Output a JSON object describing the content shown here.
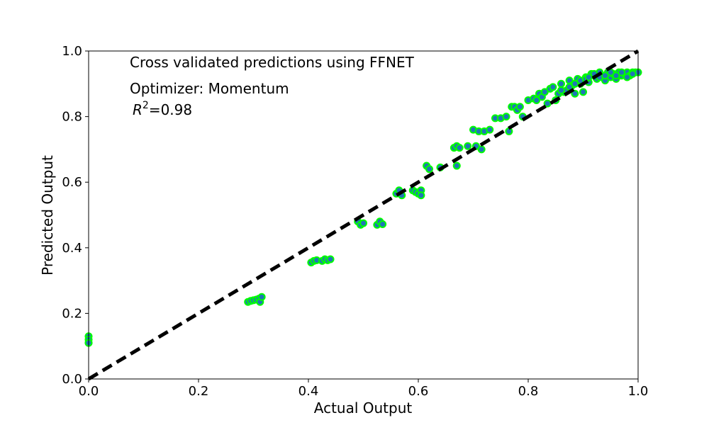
{
  "chart_data": {
    "type": "scatter",
    "title": "",
    "xlabel": "Actual Output",
    "ylabel": "Predicted Output",
    "xlim": [
      0.0,
      1.0
    ],
    "ylim": [
      0.0,
      1.0
    ],
    "x_ticks": [
      "0.0",
      "0.2",
      "0.4",
      "0.6",
      "0.8",
      "1.0"
    ],
    "y_ticks": [
      "0.0",
      "0.2",
      "0.4",
      "0.6",
      "0.8",
      "1.0"
    ],
    "grid": false,
    "annotations": {
      "line1": "Cross validated predictions using FFNET",
      "line2": "Optimizer: Momentum",
      "r2_symbol": "R",
      "r2_superscript": "2",
      "r2_value": "=0.98"
    },
    "reference_line": {
      "x": [
        0.0,
        1.0
      ],
      "y": [
        0.0,
        1.0
      ],
      "style": "dashed",
      "color": "#000000"
    },
    "marker": {
      "fill": "#1f77b4",
      "edge": "#00ff00"
    },
    "points": [
      [
        0.0,
        0.13
      ],
      [
        0.0,
        0.12
      ],
      [
        0.0,
        0.11
      ],
      [
        0.0,
        0.11
      ],
      [
        0.29,
        0.235
      ],
      [
        0.295,
        0.238
      ],
      [
        0.3,
        0.24
      ],
      [
        0.305,
        0.242
      ],
      [
        0.31,
        0.245
      ],
      [
        0.312,
        0.235
      ],
      [
        0.315,
        0.25
      ],
      [
        0.405,
        0.355
      ],
      [
        0.41,
        0.36
      ],
      [
        0.415,
        0.362
      ],
      [
        0.425,
        0.36
      ],
      [
        0.43,
        0.365
      ],
      [
        0.435,
        0.362
      ],
      [
        0.44,
        0.365
      ],
      [
        0.49,
        0.48
      ],
      [
        0.495,
        0.47
      ],
      [
        0.5,
        0.475
      ],
      [
        0.525,
        0.47
      ],
      [
        0.53,
        0.48
      ],
      [
        0.535,
        0.472
      ],
      [
        0.56,
        0.565
      ],
      [
        0.565,
        0.575
      ],
      [
        0.57,
        0.56
      ],
      [
        0.59,
        0.575
      ],
      [
        0.595,
        0.57
      ],
      [
        0.6,
        0.565
      ],
      [
        0.605,
        0.575
      ],
      [
        0.605,
        0.56
      ],
      [
        0.615,
        0.65
      ],
      [
        0.62,
        0.64
      ],
      [
        0.64,
        0.645
      ],
      [
        0.665,
        0.705
      ],
      [
        0.67,
        0.71
      ],
      [
        0.67,
        0.65
      ],
      [
        0.675,
        0.705
      ],
      [
        0.69,
        0.71
      ],
      [
        0.7,
        0.76
      ],
      [
        0.705,
        0.71
      ],
      [
        0.71,
        0.755
      ],
      [
        0.715,
        0.7
      ],
      [
        0.72,
        0.755
      ],
      [
        0.73,
        0.76
      ],
      [
        0.74,
        0.795
      ],
      [
        0.75,
        0.795
      ],
      [
        0.76,
        0.8
      ],
      [
        0.765,
        0.755
      ],
      [
        0.77,
        0.83
      ],
      [
        0.775,
        0.83
      ],
      [
        0.78,
        0.82
      ],
      [
        0.785,
        0.83
      ],
      [
        0.79,
        0.8
      ],
      [
        0.8,
        0.85
      ],
      [
        0.81,
        0.855
      ],
      [
        0.815,
        0.85
      ],
      [
        0.82,
        0.87
      ],
      [
        0.825,
        0.86
      ],
      [
        0.83,
        0.875
      ],
      [
        0.835,
        0.84
      ],
      [
        0.84,
        0.885
      ],
      [
        0.845,
        0.89
      ],
      [
        0.85,
        0.85
      ],
      [
        0.855,
        0.87
      ],
      [
        0.86,
        0.9
      ],
      [
        0.865,
        0.875
      ],
      [
        0.87,
        0.88
      ],
      [
        0.875,
        0.91
      ],
      [
        0.88,
        0.895
      ],
      [
        0.885,
        0.87
      ],
      [
        0.89,
        0.915
      ],
      [
        0.895,
        0.9
      ],
      [
        0.9,
        0.875
      ],
      [
        0.905,
        0.92
      ],
      [
        0.91,
        0.905
      ],
      [
        0.915,
        0.93
      ],
      [
        0.92,
        0.925
      ],
      [
        0.925,
        0.915
      ],
      [
        0.93,
        0.935
      ],
      [
        0.935,
        0.925
      ],
      [
        0.94,
        0.91
      ],
      [
        0.945,
        0.935
      ],
      [
        0.95,
        0.92
      ],
      [
        0.955,
        0.93
      ],
      [
        0.96,
        0.915
      ],
      [
        0.965,
        0.935
      ],
      [
        0.97,
        0.925
      ],
      [
        0.975,
        0.93
      ],
      [
        0.98,
        0.935
      ],
      [
        0.985,
        0.925
      ],
      [
        0.99,
        0.935
      ],
      [
        0.995,
        0.935
      ],
      [
        1.0,
        0.935
      ],
      [
        0.86,
        0.88
      ],
      [
        0.875,
        0.89
      ],
      [
        0.885,
        0.9
      ],
      [
        0.895,
        0.91
      ],
      [
        0.905,
        0.915
      ],
      [
        0.91,
        0.92
      ],
      [
        0.92,
        0.93
      ],
      [
        0.93,
        0.92
      ],
      [
        0.94,
        0.925
      ],
      [
        0.95,
        0.935
      ],
      [
        0.96,
        0.925
      ],
      [
        0.97,
        0.935
      ],
      [
        0.98,
        0.92
      ],
      [
        0.99,
        0.93
      ]
    ]
  }
}
